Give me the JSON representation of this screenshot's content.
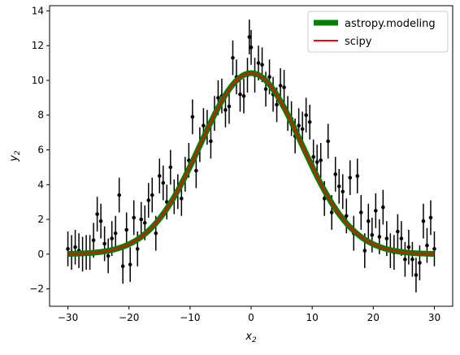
{
  "chart_data": {
    "type": "scatter",
    "xlabel": "x",
    "xlabel_sub": "2",
    "ylabel": "y",
    "ylabel_sub": "2",
    "xlim": [
      -33,
      33
    ],
    "ylim": [
      -3,
      14.3
    ],
    "xticks": [
      -30,
      -20,
      -10,
      0,
      10,
      20,
      30
    ],
    "yticks": [
      -2,
      0,
      2,
      4,
      6,
      8,
      10,
      12,
      14
    ],
    "grid": false,
    "legend_position": "top-right",
    "series": [
      {
        "name": "astropy.modeling",
        "kind": "line",
        "color": "#008000",
        "model": {
          "amplitude": 10.42,
          "mean": 0.0,
          "stddev": 8.3
        }
      },
      {
        "name": "scipy",
        "kind": "line",
        "color": "#ff0000",
        "model": {
          "amplitude": 10.42,
          "mean": 0.0,
          "stddev": 8.3
        }
      },
      {
        "kind": "errorbar",
        "color": "#000000",
        "yerr": 1.0,
        "points": [
          {
            "x": -30.0,
            "y": 0.3
          },
          {
            "x": -29.4,
            "y": 0.1
          },
          {
            "x": -28.8,
            "y": 0.4
          },
          {
            "x": -28.2,
            "y": 0.2
          },
          {
            "x": -27.6,
            "y": 0.0
          },
          {
            "x": -27.0,
            "y": 0.1
          },
          {
            "x": -26.4,
            "y": 0.1
          },
          {
            "x": -25.8,
            "y": 0.8
          },
          {
            "x": -25.2,
            "y": 2.3
          },
          {
            "x": -24.6,
            "y": 1.9
          },
          {
            "x": -24.0,
            "y": 0.6
          },
          {
            "x": -23.4,
            "y": -0.1
          },
          {
            "x": -22.8,
            "y": 0.9
          },
          {
            "x": -22.2,
            "y": 1.2
          },
          {
            "x": -21.6,
            "y": 3.4
          },
          {
            "x": -21.0,
            "y": -0.7
          },
          {
            "x": -20.4,
            "y": 1.4
          },
          {
            "x": -19.8,
            "y": -0.6
          },
          {
            "x": -19.2,
            "y": 2.1
          },
          {
            "x": -18.6,
            "y": 0.3
          },
          {
            "x": -18.0,
            "y": 2.0
          },
          {
            "x": -17.4,
            "y": 1.8
          },
          {
            "x": -16.8,
            "y": 3.1
          },
          {
            "x": -16.2,
            "y": 3.4
          },
          {
            "x": -15.6,
            "y": 1.2
          },
          {
            "x": -15.0,
            "y": 4.5
          },
          {
            "x": -14.4,
            "y": 4.1
          },
          {
            "x": -13.8,
            "y": 3.0
          },
          {
            "x": -13.2,
            "y": 5.0
          },
          {
            "x": -12.6,
            "y": 3.3
          },
          {
            "x": -12.0,
            "y": 3.6
          },
          {
            "x": -11.4,
            "y": 3.2
          },
          {
            "x": -10.8,
            "y": 4.6
          },
          {
            "x": -10.2,
            "y": 5.4
          },
          {
            "x": -9.6,
            "y": 7.9
          },
          {
            "x": -9.0,
            "y": 4.8
          },
          {
            "x": -8.4,
            "y": 6.3
          },
          {
            "x": -7.8,
            "y": 7.4
          },
          {
            "x": -7.2,
            "y": 7.3
          },
          {
            "x": -6.6,
            "y": 6.5
          },
          {
            "x": -6.0,
            "y": 8.1
          },
          {
            "x": -5.4,
            "y": 9.0
          },
          {
            "x": -4.8,
            "y": 9.1
          },
          {
            "x": -4.2,
            "y": 8.3
          },
          {
            "x": -3.6,
            "y": 8.5
          },
          {
            "x": -3.0,
            "y": 11.3
          },
          {
            "x": -2.4,
            "y": 10.2
          },
          {
            "x": -1.8,
            "y": 9.2
          },
          {
            "x": -1.2,
            "y": 9.1
          },
          {
            "x": -0.6,
            "y": 10.3
          },
          {
            "x": -0.3,
            "y": 12.5
          },
          {
            "x": 0.0,
            "y": 11.9
          },
          {
            "x": 0.6,
            "y": 10.3
          },
          {
            "x": 1.2,
            "y": 11.0
          },
          {
            "x": 1.8,
            "y": 10.9
          },
          {
            "x": 2.4,
            "y": 9.5
          },
          {
            "x": 3.0,
            "y": 10.2
          },
          {
            "x": 3.6,
            "y": 9.2
          },
          {
            "x": 4.2,
            "y": 8.6
          },
          {
            "x": 4.8,
            "y": 9.7
          },
          {
            "x": 5.4,
            "y": 9.6
          },
          {
            "x": 6.0,
            "y": 8.1
          },
          {
            "x": 6.6,
            "y": 7.8
          },
          {
            "x": 7.2,
            "y": 6.8
          },
          {
            "x": 7.8,
            "y": 7.4
          },
          {
            "x": 8.4,
            "y": 7.2
          },
          {
            "x": 9.0,
            "y": 8.0
          },
          {
            "x": 9.6,
            "y": 7.6
          },
          {
            "x": 10.2,
            "y": 5.6
          },
          {
            "x": 10.8,
            "y": 5.3
          },
          {
            "x": 11.4,
            "y": 5.4
          },
          {
            "x": 12.0,
            "y": 3.2
          },
          {
            "x": 12.6,
            "y": 6.5
          },
          {
            "x": 13.2,
            "y": 2.4
          },
          {
            "x": 13.8,
            "y": 4.6
          },
          {
            "x": 14.4,
            "y": 3.9
          },
          {
            "x": 15.0,
            "y": 3.6
          },
          {
            "x": 15.6,
            "y": 2.2
          },
          {
            "x": 16.2,
            "y": 4.4
          },
          {
            "x": 16.8,
            "y": 1.2
          },
          {
            "x": 17.4,
            "y": 4.5
          },
          {
            "x": 18.0,
            "y": 2.4
          },
          {
            "x": 18.6,
            "y": 0.2
          },
          {
            "x": 19.2,
            "y": 1.9
          },
          {
            "x": 19.8,
            "y": 1.1
          },
          {
            "x": 20.4,
            "y": 2.5
          },
          {
            "x": 21.0,
            "y": 1.0
          },
          {
            "x": 21.6,
            "y": 2.7
          },
          {
            "x": 22.2,
            "y": 0.9
          },
          {
            "x": 22.8,
            "y": 0.2
          },
          {
            "x": 23.4,
            "y": 0.1
          },
          {
            "x": 24.0,
            "y": 1.3
          },
          {
            "x": 24.6,
            "y": 0.9
          },
          {
            "x": 25.2,
            "y": -0.3
          },
          {
            "x": 25.8,
            "y": 0.4
          },
          {
            "x": 26.4,
            "y": -0.3
          },
          {
            "x": 27.0,
            "y": -1.2
          },
          {
            "x": 27.6,
            "y": -0.5
          },
          {
            "x": 28.2,
            "y": 1.9
          },
          {
            "x": 28.8,
            "y": 0.5
          },
          {
            "x": 29.4,
            "y": 2.1
          },
          {
            "x": 30.0,
            "y": 0.3
          }
        ]
      }
    ]
  }
}
